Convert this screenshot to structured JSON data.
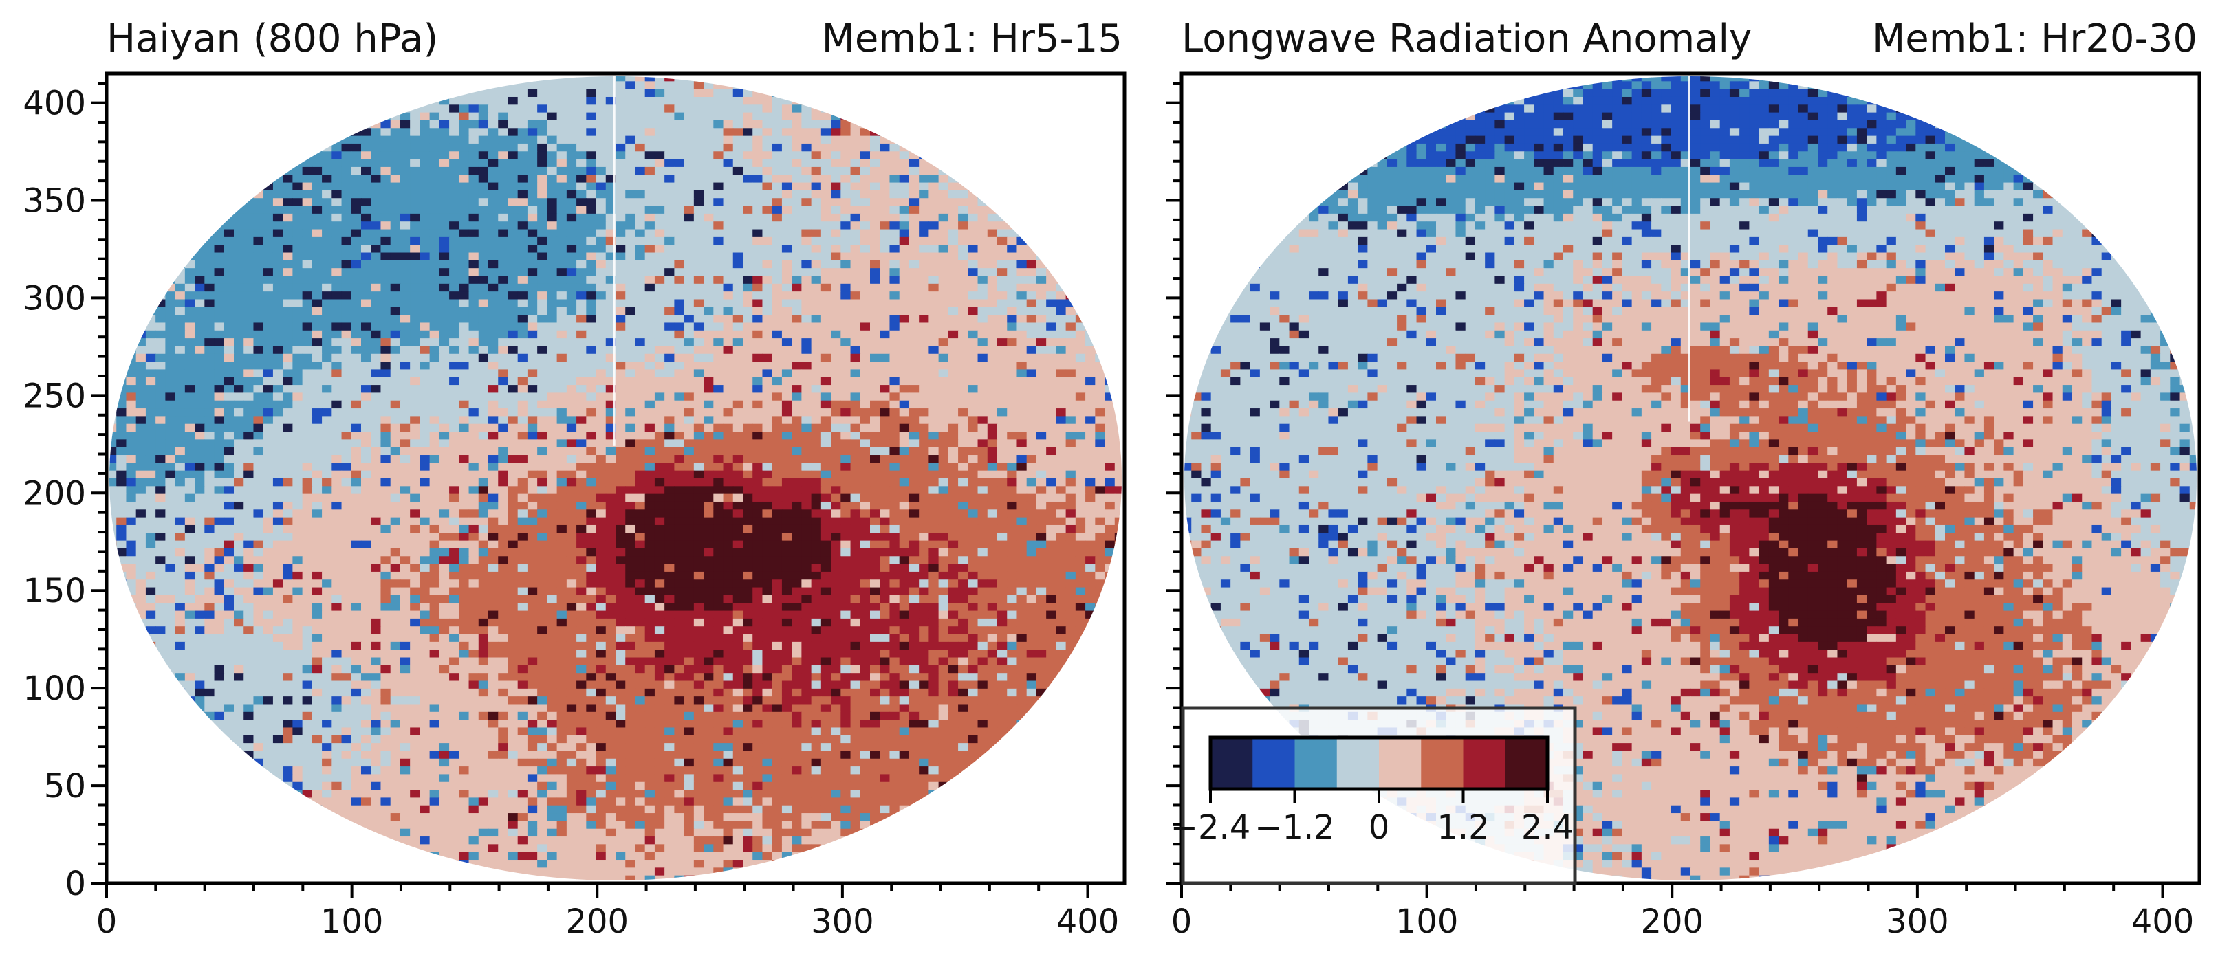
{
  "chart_data": [
    {
      "type": "heatmap",
      "title": "Haiyan (800 hPa)",
      "subtitle": "Memb1: Hr5-15",
      "xlabel": "",
      "ylabel": "",
      "xlim": [
        0,
        415
      ],
      "ylim": [
        0,
        415
      ],
      "xticks": [
        "0",
        "100",
        "200",
        "300",
        "400"
      ],
      "yticks": [
        "0",
        "50",
        "100",
        "150",
        "200",
        "250",
        "300",
        "350",
        "400"
      ],
      "domain": "elliptical (circular radius ~207 in grid units, centered at 207,207)",
      "features": [
        {
          "region": "north-west quadrant",
          "value_range": [
            -2.4,
            -0.6
          ]
        },
        {
          "region": "west edge",
          "value_range": [
            -1.8,
            -1.2
          ]
        },
        {
          "region": "south-east half",
          "value_range": [
            0,
            0.6
          ]
        },
        {
          "region": "core near (240,175)",
          "value_range": [
            1.2,
            2.4
          ]
        }
      ]
    },
    {
      "type": "heatmap",
      "title": "Longwave Radiation Anomaly",
      "subtitle": "Memb1: Hr20-30",
      "xlabel": "",
      "ylabel": "",
      "xlim": [
        0,
        415
      ],
      "ylim": [
        0,
        415
      ],
      "xticks": [
        "0",
        "100",
        "200",
        "300",
        "400"
      ],
      "yticks": [],
      "domain": "elliptical (circular radius ~207 in grid units, centered at 207,207)",
      "features": [
        {
          "region": "north band",
          "value_range": [
            -1.8,
            -1.2
          ]
        },
        {
          "region": "south-west",
          "value_range": [
            -1.2,
            0
          ]
        },
        {
          "region": "east-centre",
          "value_range": [
            0,
            0.6
          ]
        },
        {
          "region": "core near (265,160)",
          "value_range": [
            1.2,
            2.4
          ]
        }
      ],
      "colorbar": {
        "placement": "bottom-left inset",
        "boundaries": [
          -2.4,
          -1.8,
          -1.2,
          -0.6,
          0,
          0.6,
          1.2,
          1.8,
          2.4
        ],
        "tick_labels": [
          "−2.4",
          "−1.2",
          "0",
          "1.2",
          "2.4"
        ],
        "colors": [
          "#1b1f4a",
          "#1f50c0",
          "#4a96bd",
          "#bcd0da",
          "#e6c0b4",
          "#c8684e",
          "#a01c2e",
          "#4a0f18"
        ]
      }
    }
  ]
}
